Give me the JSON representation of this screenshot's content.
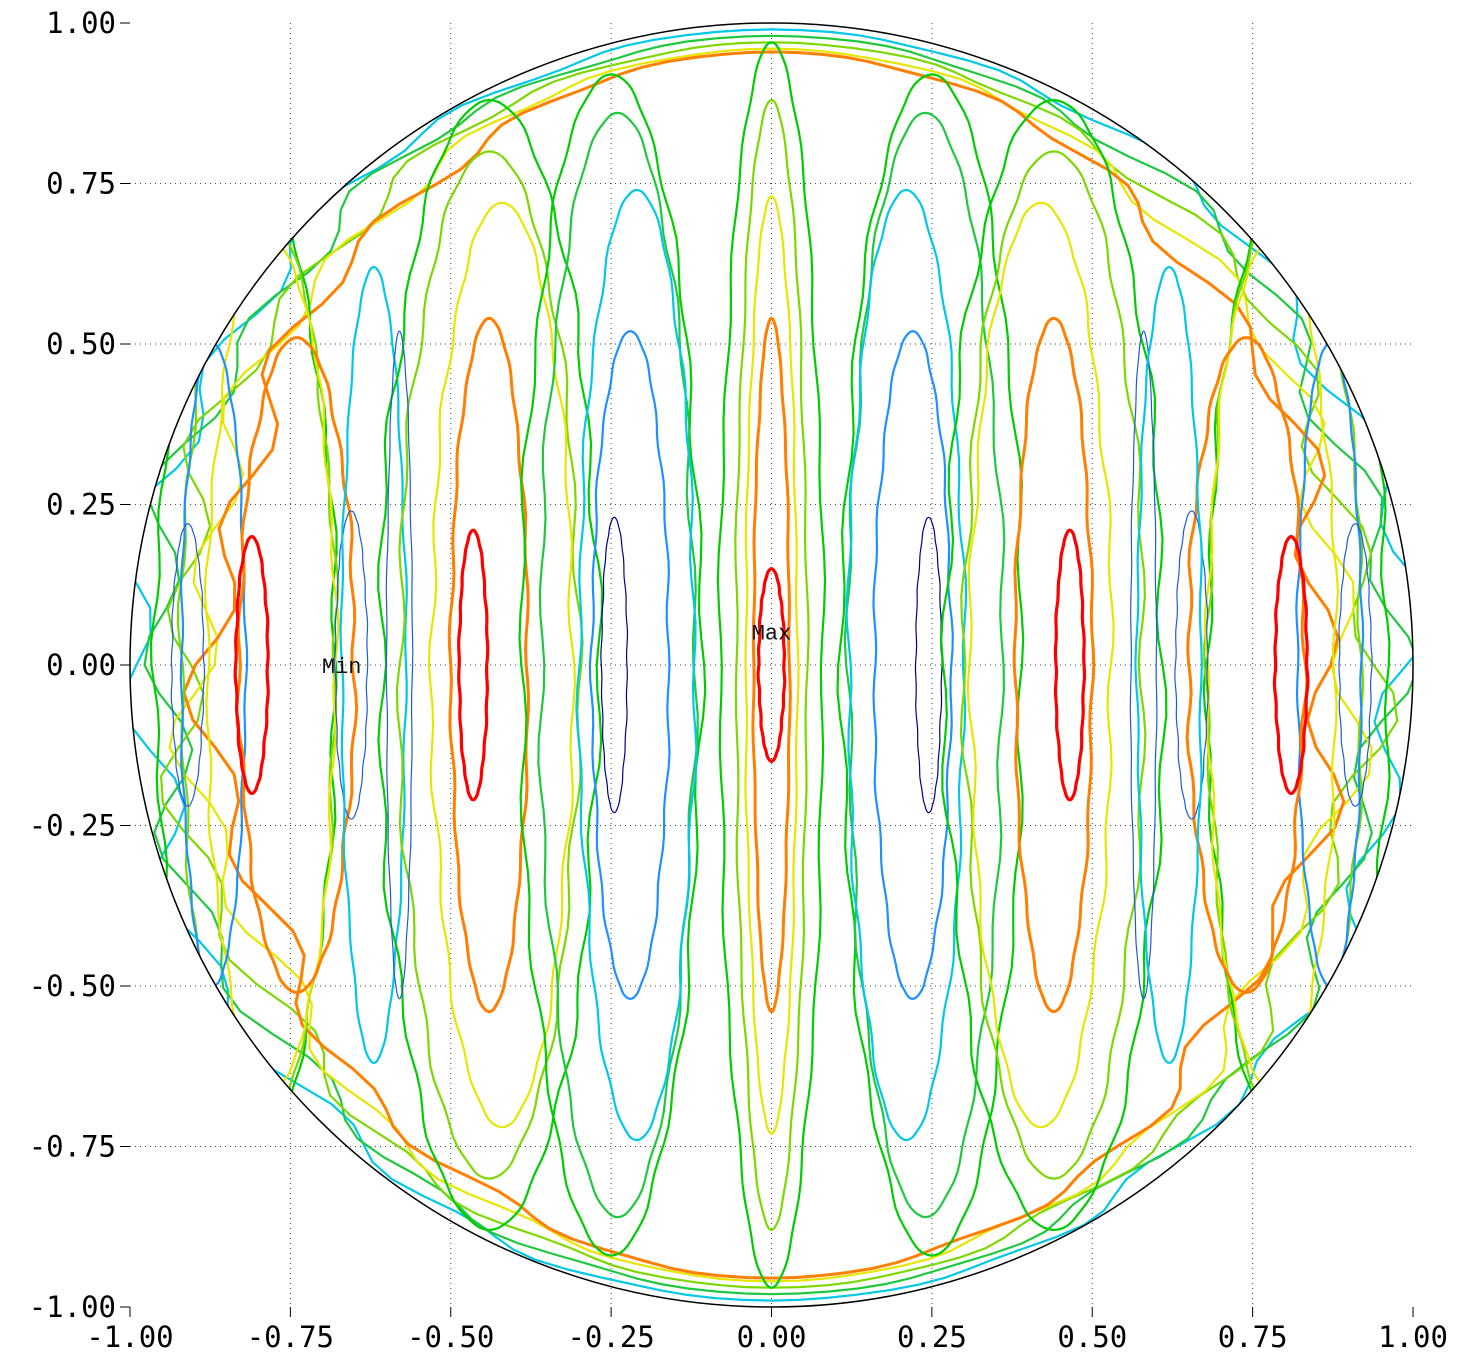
{
  "chart_data": {
    "type": "contour",
    "title": "",
    "xlabel": "",
    "ylabel": "",
    "xlim": [
      -1.0,
      1.0
    ],
    "ylim": [
      -1.0,
      1.0
    ],
    "grid": true,
    "boundary": "unit circle",
    "x_ticks": [
      "-1.00",
      "-0.75",
      "-0.50",
      "-0.25",
      "0.00",
      "0.25",
      "0.50",
      "0.75",
      "1.00"
    ],
    "y_ticks": [
      "1.00",
      "0.75",
      "0.50",
      "0.25",
      "0.00",
      "-0.25",
      "-0.50",
      "-0.75",
      "-1.00"
    ],
    "x_tick_values": [
      -1.0,
      -0.75,
      -0.5,
      -0.25,
      0.0,
      0.25,
      0.5,
      0.75,
      1.0
    ],
    "y_tick_values": [
      1.0,
      0.75,
      0.5,
      0.25,
      0.0,
      -0.25,
      -0.5,
      -0.75,
      -1.0
    ],
    "annotations": [
      {
        "text": "Max",
        "x": 0.0,
        "y": 0.04
      },
      {
        "text": "Min",
        "x": -0.67,
        "y": 0.0
      }
    ],
    "contour_colors": [
      "#00008b",
      "#1e5adc",
      "#1e90ff",
      "#00c8e6",
      "#10d0a0",
      "#20c840",
      "#00cc00",
      "#7cd800",
      "#e6e600",
      "#ff7f00",
      "#ff0000"
    ],
    "contours": [
      {
        "color": "#00c8e6",
        "cx": 0.0,
        "cy": 0.0,
        "a": 0.99,
        "b": 0.99
      },
      {
        "color": "#20c840",
        "cx": 0.0,
        "cy": 0.0,
        "a": 0.96,
        "b": 0.98
      },
      {
        "color": "#7cd800",
        "cx": 0.0,
        "cy": 0.0,
        "a": 0.93,
        "b": 0.97
      },
      {
        "color": "#e6e600",
        "cx": 0.0,
        "cy": 0.0,
        "a": 0.9,
        "b": 0.96
      },
      {
        "color": "#ff7f00",
        "cx": 0.0,
        "cy": 0.0,
        "a": 0.87,
        "b": 0.955
      },
      {
        "color": "#00cc00",
        "cx": -0.82,
        "cy": 0.0,
        "a": 0.14,
        "b": 0.78
      },
      {
        "color": "#7cd800",
        "cx": -0.8,
        "cy": 0.0,
        "a": 0.12,
        "b": 0.72
      },
      {
        "color": "#e6e600",
        "cx": -0.78,
        "cy": 0.0,
        "a": 0.1,
        "b": 0.66
      },
      {
        "color": "#1e90ff",
        "cx": -0.87,
        "cy": 0.0,
        "a": 0.05,
        "b": 0.5
      },
      {
        "color": "#1e5adc",
        "cx": -0.91,
        "cy": 0.0,
        "a": 0.025,
        "b": 0.22
      },
      {
        "color": "#ff7f00",
        "cx": -0.74,
        "cy": 0.0,
        "a": 0.09,
        "b": 0.51
      },
      {
        "color": "#ff0000",
        "cx": -0.81,
        "cy": 0.0,
        "a": 0.025,
        "b": 0.2
      },
      {
        "color": "#1e5adc",
        "cx": -0.655,
        "cy": 0.0,
        "a": 0.025,
        "b": 0.24
      },
      {
        "color": "#00c8e6",
        "cx": -0.62,
        "cy": 0.0,
        "a": 0.05,
        "b": 0.62
      },
      {
        "color": "#00cc00",
        "cx": -0.44,
        "cy": 0.0,
        "a": 0.17,
        "b": 0.88
      },
      {
        "color": "#7cd800",
        "cx": -0.44,
        "cy": 0.0,
        "a": 0.14,
        "b": 0.8
      },
      {
        "color": "#e6e600",
        "cx": -0.42,
        "cy": 0.0,
        "a": 0.11,
        "b": 0.72
      },
      {
        "color": "#ff7f00",
        "cx": -0.44,
        "cy": 0.0,
        "a": 0.06,
        "b": 0.54
      },
      {
        "color": "#ff0000",
        "cx": -0.465,
        "cy": 0.0,
        "a": 0.022,
        "b": 0.21
      },
      {
        "color": "#1e5adc",
        "cx": -0.58,
        "cy": 0.0,
        "a": 0.02,
        "b": 0.52
      },
      {
        "color": "#00cc00",
        "cx": -0.25,
        "cy": 0.0,
        "a": 0.14,
        "b": 0.92
      },
      {
        "color": "#20c840",
        "cx": -0.24,
        "cy": 0.0,
        "a": 0.12,
        "b": 0.86
      },
      {
        "color": "#00c8e6",
        "cx": -0.21,
        "cy": 0.0,
        "a": 0.09,
        "b": 0.74
      },
      {
        "color": "#1e90ff",
        "cx": -0.22,
        "cy": 0.0,
        "a": 0.06,
        "b": 0.52
      },
      {
        "color": "#00008b",
        "cx": -0.245,
        "cy": 0.0,
        "a": 0.02,
        "b": 0.23
      },
      {
        "color": "#00cc00",
        "cx": 0.0,
        "cy": 0.0,
        "a": 0.08,
        "b": 0.97
      },
      {
        "color": "#7cd800",
        "cx": 0.0,
        "cy": 0.0,
        "a": 0.055,
        "b": 0.88
      },
      {
        "color": "#e6e600",
        "cx": 0.0,
        "cy": 0.0,
        "a": 0.04,
        "b": 0.73
      },
      {
        "color": "#ff7f00",
        "cx": 0.0,
        "cy": 0.0,
        "a": 0.028,
        "b": 0.54
      },
      {
        "color": "#ff0000",
        "cx": 0.0,
        "cy": 0.0,
        "a": 0.02,
        "b": 0.15
      },
      {
        "color": "#00cc00",
        "cx": 0.25,
        "cy": 0.0,
        "a": 0.14,
        "b": 0.92
      },
      {
        "color": "#20c840",
        "cx": 0.24,
        "cy": 0.0,
        "a": 0.12,
        "b": 0.86
      },
      {
        "color": "#00c8e6",
        "cx": 0.21,
        "cy": 0.0,
        "a": 0.09,
        "b": 0.74
      },
      {
        "color": "#1e90ff",
        "cx": 0.22,
        "cy": 0.0,
        "a": 0.06,
        "b": 0.52
      },
      {
        "color": "#00008b",
        "cx": 0.245,
        "cy": 0.0,
        "a": 0.02,
        "b": 0.23
      },
      {
        "color": "#00cc00",
        "cx": 0.44,
        "cy": 0.0,
        "a": 0.17,
        "b": 0.88
      },
      {
        "color": "#7cd800",
        "cx": 0.44,
        "cy": 0.0,
        "a": 0.14,
        "b": 0.8
      },
      {
        "color": "#e6e600",
        "cx": 0.42,
        "cy": 0.0,
        "a": 0.11,
        "b": 0.72
      },
      {
        "color": "#ff7f00",
        "cx": 0.44,
        "cy": 0.0,
        "a": 0.06,
        "b": 0.54
      },
      {
        "color": "#ff0000",
        "cx": 0.465,
        "cy": 0.0,
        "a": 0.022,
        "b": 0.21
      },
      {
        "color": "#1e5adc",
        "cx": 0.58,
        "cy": 0.0,
        "a": 0.02,
        "b": 0.52
      },
      {
        "color": "#00cc00",
        "cx": 0.82,
        "cy": 0.0,
        "a": 0.14,
        "b": 0.78
      },
      {
        "color": "#7cd800",
        "cx": 0.8,
        "cy": 0.0,
        "a": 0.12,
        "b": 0.72
      },
      {
        "color": "#e6e600",
        "cx": 0.78,
        "cy": 0.0,
        "a": 0.1,
        "b": 0.66
      },
      {
        "color": "#1e90ff",
        "cx": 0.87,
        "cy": 0.0,
        "a": 0.05,
        "b": 0.5
      },
      {
        "color": "#1e5adc",
        "cx": 0.91,
        "cy": 0.0,
        "a": 0.025,
        "b": 0.22
      },
      {
        "color": "#ff7f00",
        "cx": 0.74,
        "cy": 0.0,
        "a": 0.09,
        "b": 0.51
      },
      {
        "color": "#ff0000",
        "cx": 0.81,
        "cy": 0.0,
        "a": 0.025,
        "b": 0.2
      },
      {
        "color": "#1e5adc",
        "cx": 0.655,
        "cy": 0.0,
        "a": 0.025,
        "b": 0.24
      },
      {
        "color": "#00c8e6",
        "cx": 0.62,
        "cy": 0.0,
        "a": 0.05,
        "b": 0.62
      }
    ]
  }
}
